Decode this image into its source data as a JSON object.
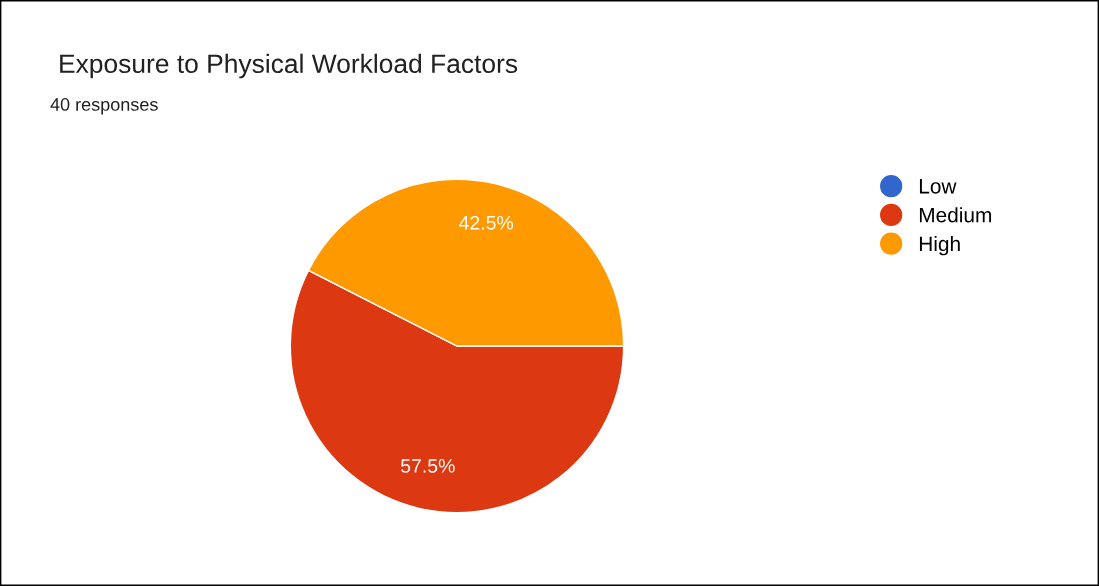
{
  "chart_data": {
    "type": "pie",
    "title": "Exposure to Physical Workload Factors",
    "subtitle": "40 responses",
    "categories": [
      "Low",
      "Medium",
      "High"
    ],
    "values": [
      0,
      57.5,
      42.5
    ],
    "colors": [
      "#3366cc",
      "#dc3912",
      "#ff9900"
    ],
    "value_labels": [
      null,
      "57.5%",
      "42.5%"
    ],
    "legend": "right"
  }
}
